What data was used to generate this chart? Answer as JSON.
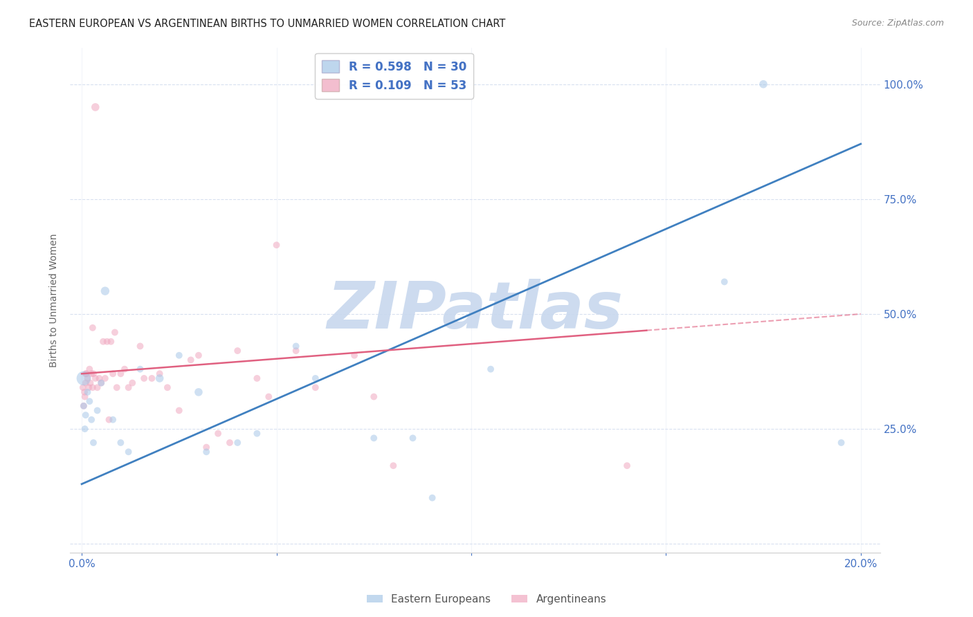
{
  "title": "EASTERN EUROPEAN VS ARGENTINEAN BIRTHS TO UNMARRIED WOMEN CORRELATION CHART",
  "source": "Source: ZipAtlas.com",
  "ylabel": "Births to Unmarried Women",
  "xlabel_ticks": [
    "0.0%",
    "",
    "",
    "",
    "20.0%"
  ],
  "xlabel_vals": [
    0.0,
    5.0,
    10.0,
    15.0,
    20.0
  ],
  "xlim": [
    -0.3,
    20.5
  ],
  "ylim": [
    -2.0,
    108.0
  ],
  "ytick_vals": [
    0,
    25.0,
    50.0,
    75.0,
    100.0
  ],
  "ytick_labels": [
    "",
    "25.0%",
    "50.0%",
    "75.0%",
    "100.0%"
  ],
  "legend1_label": "R = 0.598   N = 30",
  "legend2_label": "R = 0.109   N = 53",
  "legend_labels": [
    "Eastern Europeans",
    "Argentineans"
  ],
  "blue_color": "#a8c8e8",
  "pink_color": "#f0a8c0",
  "blue_line_color": "#4080c0",
  "pink_line_color": "#e06080",
  "title_color": "#333333",
  "axis_color": "#4472c4",
  "watermark": "ZIPatlas",
  "watermark_color": "#c8d8ee",
  "background_color": "#ffffff",
  "grid_color": "#d8e0f0",
  "blue_trend_intercept": 13.0,
  "blue_trend_slope": 3.7,
  "pink_trend_intercept": 37.0,
  "pink_trend_slope": 0.65,
  "pink_solid_end_x": 14.5,
  "blue_scatter_x": [
    0.05,
    0.08,
    0.1,
    0.15,
    0.2,
    0.25,
    0.3,
    0.4,
    0.5,
    0.6,
    0.8,
    1.0,
    1.2,
    1.5,
    2.0,
    2.5,
    3.0,
    3.2,
    4.0,
    4.5,
    5.5,
    6.0,
    7.5,
    8.5,
    9.0,
    10.5,
    16.5,
    17.5,
    19.5,
    0.05
  ],
  "blue_scatter_y": [
    30,
    25,
    28,
    33,
    31,
    27,
    22,
    29,
    35,
    55,
    27,
    22,
    20,
    38,
    36,
    41,
    33,
    20,
    22,
    24,
    43,
    36,
    23,
    23,
    10,
    38,
    57,
    100,
    22,
    36
  ],
  "blue_scatter_sizes": [
    50,
    50,
    50,
    50,
    50,
    50,
    50,
    50,
    50,
    80,
    50,
    50,
    50,
    50,
    70,
    50,
    70,
    50,
    50,
    50,
    50,
    50,
    50,
    50,
    50,
    50,
    50,
    70,
    50,
    220
  ],
  "pink_scatter_x": [
    0.03,
    0.05,
    0.07,
    0.1,
    0.12,
    0.15,
    0.18,
    0.2,
    0.22,
    0.25,
    0.28,
    0.3,
    0.35,
    0.4,
    0.45,
    0.5,
    0.55,
    0.6,
    0.65,
    0.7,
    0.75,
    0.8,
    0.85,
    0.9,
    1.0,
    1.1,
    1.2,
    1.3,
    1.5,
    1.6,
    1.8,
    2.0,
    2.2,
    2.5,
    2.8,
    3.0,
    3.2,
    3.5,
    3.8,
    4.0,
    4.5,
    4.8,
    5.0,
    5.5,
    6.0,
    7.0,
    7.5,
    8.0,
    0.08,
    0.1,
    0.28,
    14.0,
    0.35
  ],
  "pink_scatter_y": [
    34,
    30,
    33,
    35,
    37,
    36,
    34,
    38,
    35,
    37,
    34,
    37,
    36,
    34,
    36,
    35,
    44,
    36,
    44,
    27,
    44,
    37,
    46,
    34,
    37,
    38,
    34,
    35,
    43,
    36,
    36,
    37,
    34,
    29,
    40,
    41,
    21,
    24,
    22,
    42,
    36,
    32,
    65,
    42,
    34,
    41,
    32,
    17,
    32,
    37,
    47,
    17,
    95
  ],
  "pink_scatter_sizes": [
    50,
    50,
    50,
    50,
    50,
    50,
    50,
    50,
    50,
    50,
    50,
    50,
    50,
    50,
    50,
    50,
    50,
    50,
    50,
    50,
    50,
    50,
    50,
    50,
    50,
    50,
    50,
    50,
    50,
    50,
    50,
    50,
    50,
    50,
    50,
    50,
    50,
    50,
    50,
    50,
    50,
    50,
    50,
    50,
    50,
    50,
    50,
    50,
    50,
    50,
    50,
    50,
    70
  ]
}
